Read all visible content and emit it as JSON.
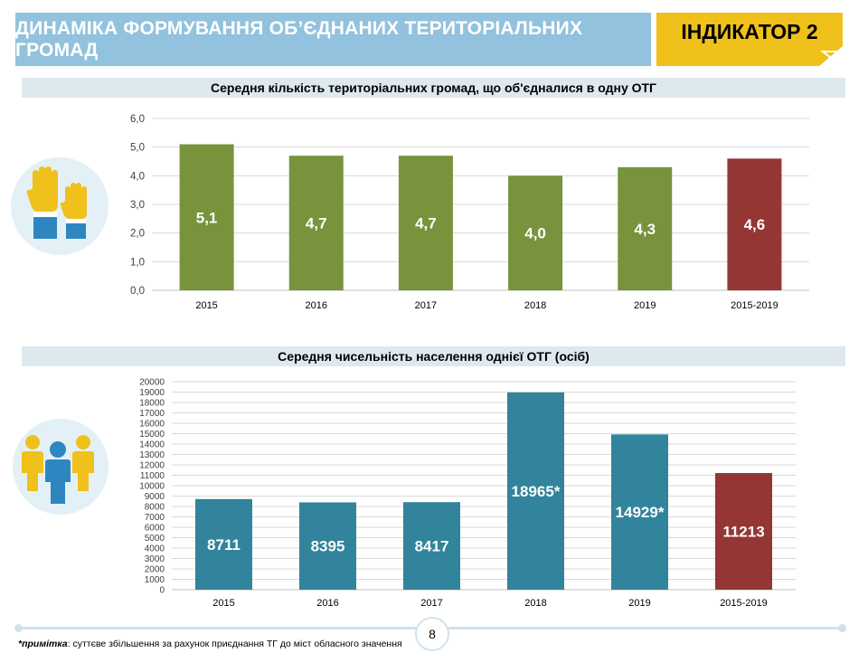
{
  "header": {
    "title": "ДИНАМІКА ФОРМУВАННЯ ОБ’ЄДНАНИХ ТЕРИТОРІАЛЬНИХ ГРОМАД",
    "indicator": "ІНДИКАТОР 2",
    "colors": {
      "title_bg": "#92c2dd",
      "indicator_bg": "#f0c01b"
    }
  },
  "icons": {
    "top": "raised-hands-icon",
    "bottom": "people-group-icon"
  },
  "chart_data": [
    {
      "type": "bar",
      "title": "Середня кількість територіальних громад, що об'єдналися в одну ОТГ",
      "categories": [
        "2015",
        "2016",
        "2017",
        "2018",
        "2019",
        "2015-2019"
      ],
      "values": [
        5.1,
        4.7,
        4.7,
        4.0,
        4.3,
        4.6
      ],
      "labels": [
        "5,1",
        "4,7",
        "4,7",
        "4,0",
        "4,3",
        "4,6"
      ],
      "yticks": [
        "0,0",
        "1,0",
        "2,0",
        "3,0",
        "4,0",
        "5,0",
        "6,0"
      ],
      "ylim": [
        0,
        6
      ],
      "colors": [
        "#77933c",
        "#77933c",
        "#77933c",
        "#77933c",
        "#77933c",
        "#943634"
      ],
      "grid": true
    },
    {
      "type": "bar",
      "title": "Середня чисельність населення однієї ОТГ (осіб)",
      "categories": [
        "2015",
        "2016",
        "2017",
        "2018",
        "2019",
        "2015-2019"
      ],
      "values": [
        8711,
        8395,
        8417,
        18965,
        14929,
        11213
      ],
      "labels": [
        "8711",
        "8395",
        "8417",
        "18965*",
        "14929*",
        "11213"
      ],
      "yticks": [
        "0",
        "1000",
        "2000",
        "3000",
        "4000",
        "5000",
        "6000",
        "7000",
        "8000",
        "9000",
        "10000",
        "11000",
        "12000",
        "13000",
        "14000",
        "15000",
        "16000",
        "17000",
        "18000",
        "19000",
        "20000"
      ],
      "ylim": [
        0,
        20000
      ],
      "colors": [
        "#31849b",
        "#31849b",
        "#31849b",
        "#31849b",
        "#31849b",
        "#943634"
      ],
      "grid": true
    }
  ],
  "footer": {
    "page_number": "8",
    "note_label": "*примітка",
    "note_text": ": суттєве збільшення за рахунок приєднання ТГ до міст обласного значення"
  }
}
